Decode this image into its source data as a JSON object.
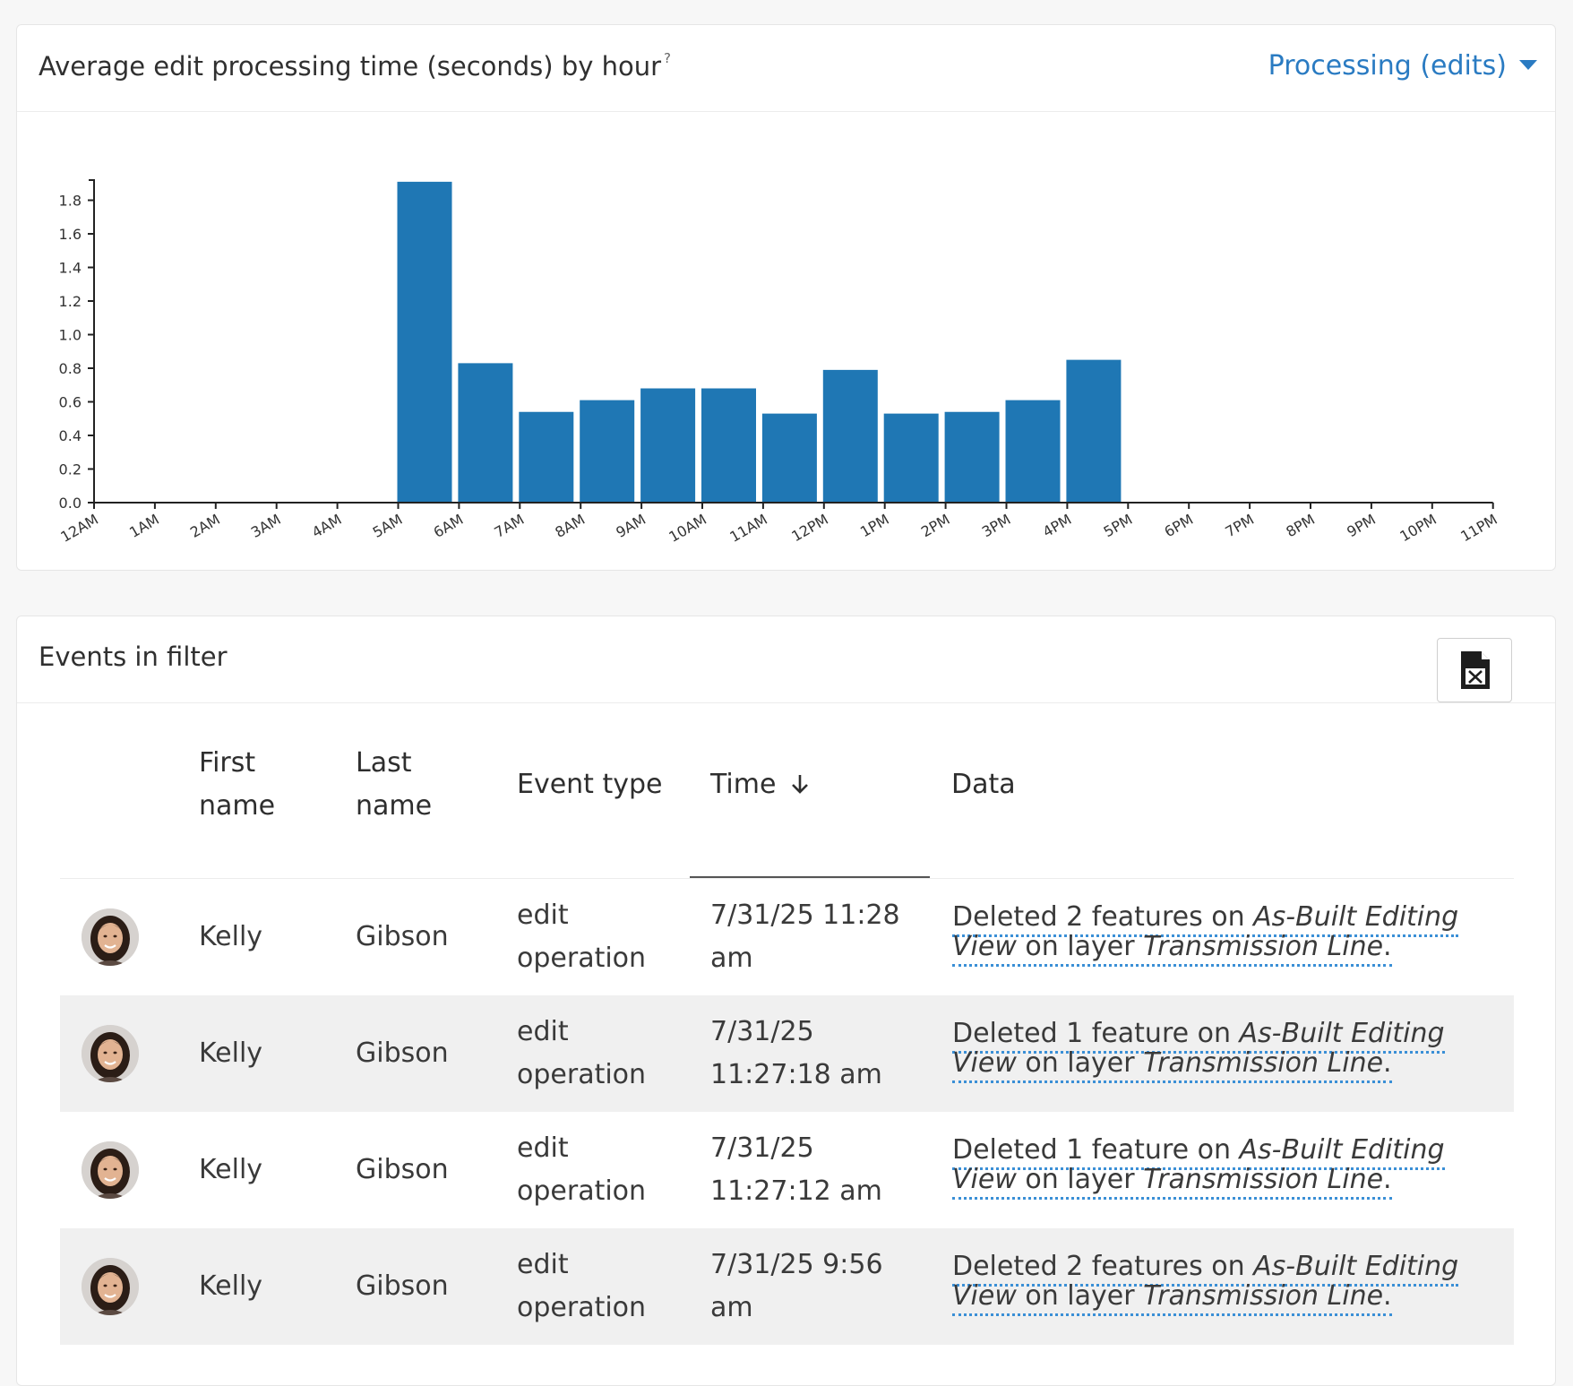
{
  "chart_card": {
    "title": "Average edit processing time (seconds) by hour",
    "help_marker": "?",
    "metric_selector": "Processing (edits)"
  },
  "chart_data": {
    "type": "bar",
    "title": "Average edit processing time (seconds) by hour",
    "xlabel": "",
    "ylabel": "",
    "categories": [
      "12AM",
      "1AM",
      "2AM",
      "3AM",
      "4AM",
      "5AM",
      "6AM",
      "7AM",
      "8AM",
      "9AM",
      "10AM",
      "11AM",
      "12PM",
      "1PM",
      "2PM",
      "3PM",
      "4PM",
      "5PM",
      "6PM",
      "7PM",
      "8PM",
      "9PM",
      "10PM",
      "11PM"
    ],
    "values": [
      0,
      0,
      0,
      0,
      0,
      1.91,
      0.83,
      0.54,
      0.61,
      0.68,
      0.68,
      0.53,
      0.79,
      0.53,
      0.54,
      0.61,
      0.85,
      0,
      0,
      0,
      0,
      0,
      0,
      0
    ],
    "ylim": [
      0,
      1.92
    ],
    "yticks": [
      0.0,
      0.2,
      0.4,
      0.6,
      0.8,
      1.0,
      1.2,
      1.4,
      1.6,
      1.8
    ],
    "ytick_labels": [
      "0.0",
      "0.2",
      "0.4",
      "0.6",
      "0.8",
      "1.0",
      "1.2",
      "1.4",
      "1.6",
      "1.8"
    ],
    "bar_color": "#1f77b4",
    "grid": false,
    "legend": "none"
  },
  "events_card": {
    "title": "Events in filter",
    "export_icon": "excel-file-icon",
    "columns": {
      "first_name": [
        "First",
        "name"
      ],
      "last_name": [
        "Last",
        "name"
      ],
      "event_type": "Event type",
      "time": "Time",
      "time_sort_icon": "arrow-down-icon",
      "data": "Data"
    },
    "rows": [
      {
        "first": "Kelly",
        "last": "Gibson",
        "event_lines": [
          "edit",
          "operation"
        ],
        "time_lines": [
          "7/31/25 11:28",
          "am"
        ],
        "data_prefix": "Deleted 2 features on ",
        "data_view": "As-Built Editing View",
        "data_mid": " on layer ",
        "data_layer": "Transmission Line",
        "data_suffix": "."
      },
      {
        "first": "Kelly",
        "last": "Gibson",
        "event_lines": [
          "edit",
          "operation"
        ],
        "time_lines": [
          "7/31/25",
          "11:27:18 am"
        ],
        "data_prefix": "Deleted 1 feature on ",
        "data_view": "As-Built Editing View",
        "data_mid": " on layer ",
        "data_layer": "Transmission Line",
        "data_suffix": "."
      },
      {
        "first": "Kelly",
        "last": "Gibson",
        "event_lines": [
          "edit",
          "operation"
        ],
        "time_lines": [
          "7/31/25",
          "11:27:12 am"
        ],
        "data_prefix": "Deleted 1 feature on ",
        "data_view": "As-Built Editing View",
        "data_mid": " on layer ",
        "data_layer": "Transmission Line",
        "data_suffix": "."
      },
      {
        "first": "Kelly",
        "last": "Gibson",
        "event_lines": [
          "edit",
          "operation"
        ],
        "time_lines": [
          "7/31/25 9:56",
          "am"
        ],
        "data_prefix": "Deleted 2 features on ",
        "data_view": "As-Built Editing View",
        "data_mid": " on layer ",
        "data_layer": "Transmission Line",
        "data_suffix": "."
      }
    ]
  }
}
